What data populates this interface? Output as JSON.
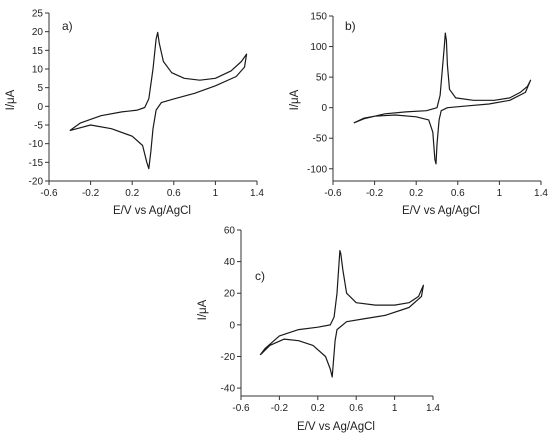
{
  "chart_data": [
    {
      "type": "line",
      "panel_label": "a)",
      "xlabel": "E/V vs Ag/AgCl",
      "ylabel": "I/μA",
      "xlim": [
        -0.6,
        1.4
      ],
      "ylim": [
        -20,
        25
      ],
      "xticks": [
        -0.6,
        -0.2,
        0.2,
        0.6,
        1.0,
        1.4
      ],
      "yticks": [
        -20,
        -15,
        -10,
        -5,
        0,
        5,
        10,
        15,
        20,
        25
      ],
      "grid": false,
      "series": [
        {
          "values": [
            [
              -0.4,
              -6.5
            ],
            [
              -0.3,
              -4.5
            ],
            [
              -0.1,
              -2.5
            ],
            [
              0.1,
              -1.5
            ],
            [
              0.25,
              -1.0
            ],
            [
              0.32,
              -0.3
            ],
            [
              0.36,
              2.0
            ],
            [
              0.4,
              10.0
            ],
            [
              0.43,
              18.0
            ],
            [
              0.445,
              19.8
            ],
            [
              0.46,
              17.0
            ],
            [
              0.5,
              12.0
            ],
            [
              0.58,
              9.0
            ],
            [
              0.7,
              7.5
            ],
            [
              0.85,
              7.0
            ],
            [
              1.0,
              7.5
            ],
            [
              1.15,
              9.5
            ],
            [
              1.25,
              12.0
            ],
            [
              1.3,
              14.0
            ],
            [
              1.28,
              10.5
            ],
            [
              1.2,
              8.0
            ],
            [
              1.0,
              5.5
            ],
            [
              0.8,
              3.5
            ],
            [
              0.6,
              2.0
            ],
            [
              0.48,
              1.0
            ],
            [
              0.43,
              -1.0
            ],
            [
              0.4,
              -6.0
            ],
            [
              0.38,
              -12.0
            ],
            [
              0.36,
              -16.7
            ],
            [
              0.34,
              -15.0
            ],
            [
              0.3,
              -10.5
            ],
            [
              0.2,
              -8.0
            ],
            [
              0.0,
              -6.0
            ],
            [
              -0.2,
              -5.0
            ],
            [
              -0.4,
              -6.5
            ]
          ]
        }
      ]
    },
    {
      "type": "line",
      "panel_label": "b)",
      "xlabel": "E/V vs Ag/AgCl",
      "ylabel": "I/μA",
      "xlim": [
        -0.6,
        1.4
      ],
      "ylim": [
        -120,
        150
      ],
      "xticks": [
        -0.6,
        -0.2,
        0.2,
        0.6,
        1.0,
        1.4
      ],
      "yticks": [
        -100,
        -50,
        0,
        50,
        100,
        150
      ],
      "grid": false,
      "series": [
        {
          "values": [
            [
              -0.4,
              -25
            ],
            [
              -0.3,
              -18
            ],
            [
              -0.1,
              -10
            ],
            [
              0.1,
              -7
            ],
            [
              0.3,
              -5
            ],
            [
              0.4,
              0
            ],
            [
              0.43,
              20
            ],
            [
              0.45,
              60
            ],
            [
              0.47,
              100
            ],
            [
              0.48,
              122
            ],
            [
              0.49,
              110
            ],
            [
              0.5,
              70
            ],
            [
              0.52,
              30
            ],
            [
              0.58,
              16
            ],
            [
              0.75,
              12
            ],
            [
              0.95,
              12
            ],
            [
              1.1,
              16
            ],
            [
              1.2,
              25
            ],
            [
              1.27,
              35
            ],
            [
              1.3,
              45
            ],
            [
              1.25,
              25
            ],
            [
              1.1,
              12
            ],
            [
              0.9,
              6
            ],
            [
              0.7,
              3
            ],
            [
              0.5,
              0
            ],
            [
              0.44,
              -5
            ],
            [
              0.42,
              -20
            ],
            [
              0.4,
              -60
            ],
            [
              0.39,
              -92
            ],
            [
              0.38,
              -85
            ],
            [
              0.36,
              -40
            ],
            [
              0.32,
              -20
            ],
            [
              0.2,
              -15
            ],
            [
              0.0,
              -12
            ],
            [
              -0.2,
              -14
            ],
            [
              -0.3,
              -17
            ],
            [
              -0.4,
              -25
            ]
          ]
        }
      ]
    },
    {
      "type": "line",
      "panel_label": "c)",
      "xlabel": "E/V vs Ag/AgCl",
      "ylabel": "I/μA",
      "xlim": [
        -0.6,
        1.4
      ],
      "ylim": [
        -45,
        60
      ],
      "xticks": [
        -0.6,
        -0.2,
        0.2,
        0.6,
        1.0,
        1.4
      ],
      "yticks": [
        -40,
        -20,
        0,
        20,
        40,
        60
      ],
      "grid": false,
      "series": [
        {
          "values": [
            [
              -0.4,
              -19
            ],
            [
              -0.35,
              -15
            ],
            [
              -0.2,
              -7
            ],
            [
              0.0,
              -3
            ],
            [
              0.2,
              -1.5
            ],
            [
              0.33,
              0
            ],
            [
              0.37,
              5
            ],
            [
              0.4,
              20
            ],
            [
              0.42,
              38
            ],
            [
              0.43,
              47
            ],
            [
              0.44,
              45
            ],
            [
              0.46,
              35
            ],
            [
              0.5,
              20
            ],
            [
              0.6,
              14
            ],
            [
              0.8,
              12.5
            ],
            [
              1.0,
              12.5
            ],
            [
              1.15,
              14
            ],
            [
              1.25,
              18
            ],
            [
              1.3,
              25
            ],
            [
              1.28,
              18
            ],
            [
              1.15,
              11
            ],
            [
              0.9,
              6
            ],
            [
              0.7,
              4
            ],
            [
              0.5,
              2
            ],
            [
              0.4,
              -3
            ],
            [
              0.38,
              -10
            ],
            [
              0.36,
              -25
            ],
            [
              0.35,
              -33
            ],
            [
              0.33,
              -28
            ],
            [
              0.28,
              -20
            ],
            [
              0.15,
              -13
            ],
            [
              0.0,
              -10
            ],
            [
              -0.15,
              -9
            ],
            [
              -0.3,
              -13
            ],
            [
              -0.4,
              -19
            ]
          ]
        }
      ]
    }
  ]
}
